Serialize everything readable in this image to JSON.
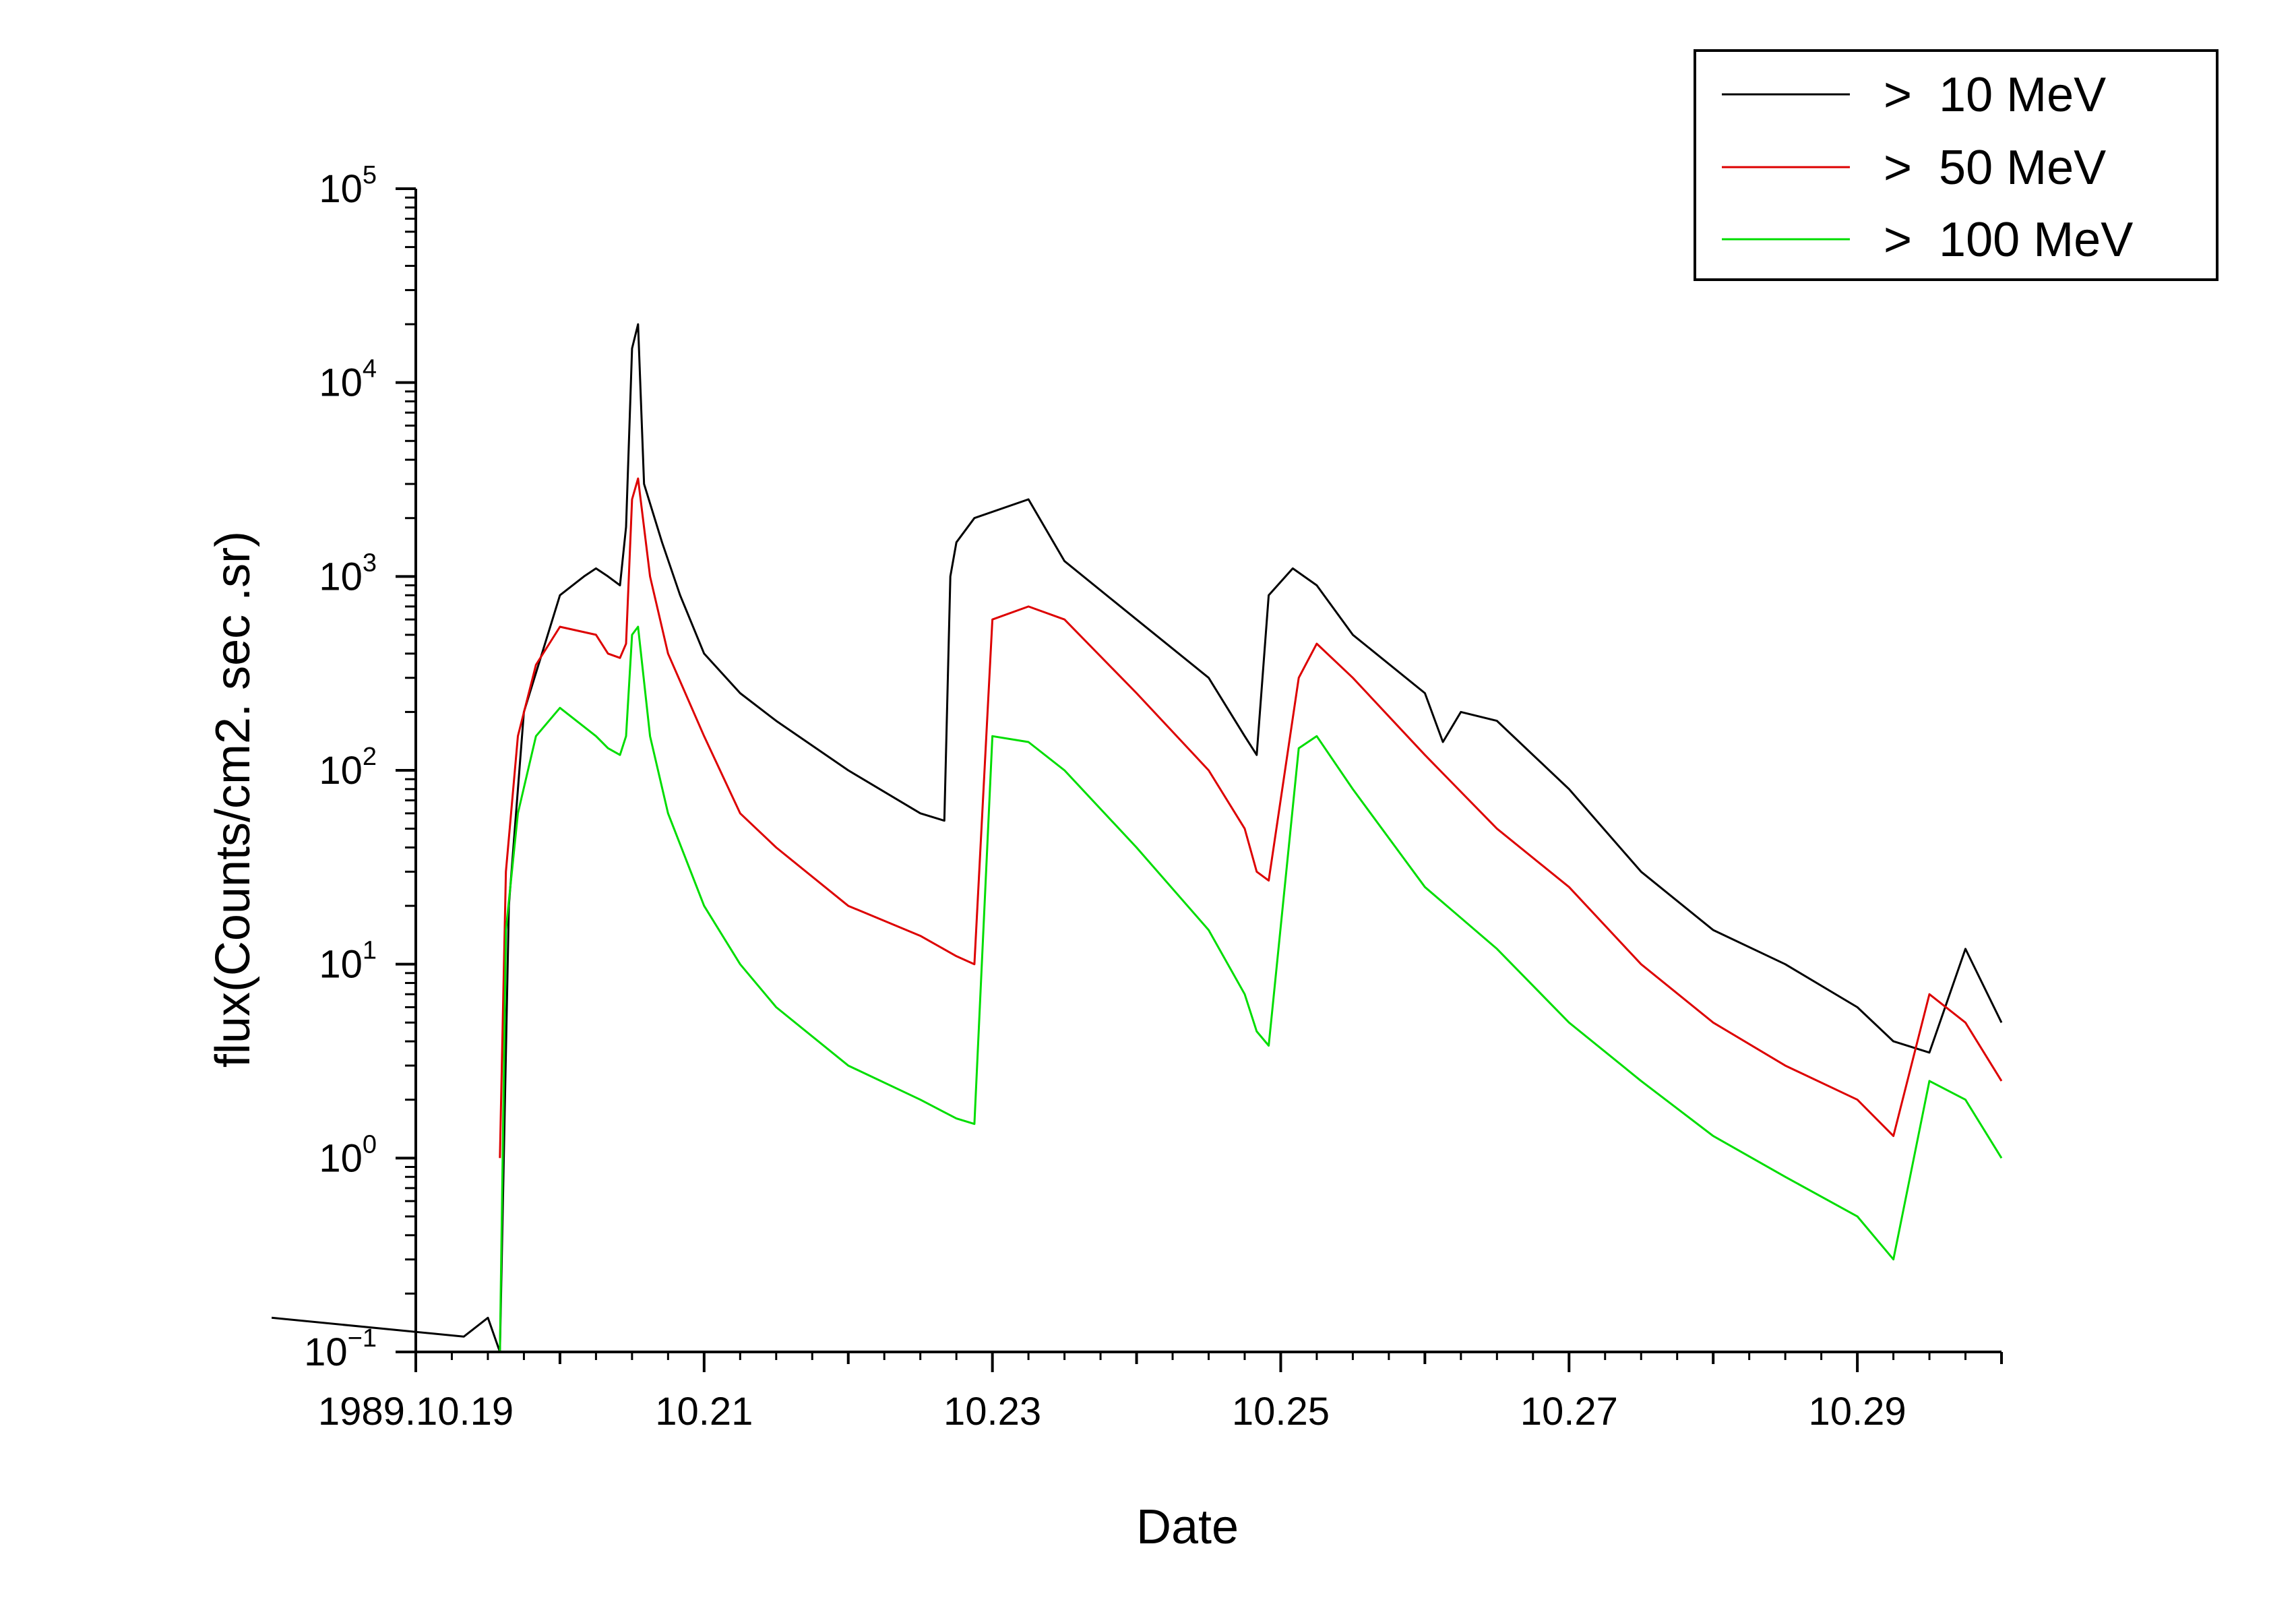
{
  "chart_data": {
    "type": "line",
    "xlabel": "Date",
    "ylabel": "flux(Counts/cm2. sec .sr)",
    "y_scale": "log",
    "ylim": [
      0.1,
      100000
    ],
    "xlim": [
      "1989-10-19",
      "1989-10-30"
    ],
    "x_tick_labels": [
      {
        "date": "1989-10-19",
        "label": "1989.10.19"
      },
      {
        "date": "1989-10-21",
        "label": "10.21"
      },
      {
        "date": "1989-10-23",
        "label": "10.23"
      },
      {
        "date": "1989-10-25",
        "label": "10.25"
      },
      {
        "date": "1989-10-27",
        "label": "10.27"
      },
      {
        "date": "1989-10-29",
        "label": "10.29"
      }
    ],
    "y_ticks": [
      {
        "value": 0.1,
        "base": "10",
        "exp": "−1"
      },
      {
        "value": 1,
        "base": "10",
        "exp": "0"
      },
      {
        "value": 10,
        "base": "10",
        "exp": "1"
      },
      {
        "value": 100,
        "base": "10",
        "exp": "2"
      },
      {
        "value": 1000,
        "base": "10",
        "exp": "3"
      },
      {
        "value": 10000,
        "base": "10",
        "exp": "4"
      },
      {
        "value": 100000,
        "base": "10",
        "exp": "5"
      }
    ],
    "grid": false,
    "legend_position": "top-right",
    "series": [
      {
        "name": ">  10 MeV",
        "color": "#000000",
        "x": [
          "1989-10-18T00:00",
          "1989-10-19T08:00",
          "1989-10-19T12:00",
          "1989-10-19T14:00",
          "1989-10-19T15:30",
          "1989-10-19T18:00",
          "1989-10-19T21:00",
          "1989-10-20T00:00",
          "1989-10-20T04:00",
          "1989-10-20T06:00",
          "1989-10-20T08:00",
          "1989-10-20T10:00",
          "1989-10-20T11:00",
          "1989-10-20T12:00",
          "1989-10-20T13:00",
          "1989-10-20T14:00",
          "1989-10-20T17:00",
          "1989-10-20T20:00",
          "1989-10-21T00:00",
          "1989-10-21T06:00",
          "1989-10-21T12:00",
          "1989-10-22T00:00",
          "1989-10-22T12:00",
          "1989-10-22T16:00",
          "1989-10-22T17:00",
          "1989-10-22T18:00",
          "1989-10-22T21:00",
          "1989-10-23T06:00",
          "1989-10-23T12:00",
          "1989-10-24T00:00",
          "1989-10-24T12:00",
          "1989-10-24T18:00",
          "1989-10-24T20:00",
          "1989-10-24T22:00",
          "1989-10-25T02:00",
          "1989-10-25T06:00",
          "1989-10-25T12:00",
          "1989-10-26T00:00",
          "1989-10-26T03:00",
          "1989-10-26T06:00",
          "1989-10-26T12:00",
          "1989-10-27T00:00",
          "1989-10-27T12:00",
          "1989-10-28T00:00",
          "1989-10-28T12:00",
          "1989-10-29T00:00",
          "1989-10-29T06:00",
          "1989-10-29T12:00",
          "1989-10-29T18:00",
          "1989-10-30T00:00"
        ],
        "values": [
          0.15,
          0.12,
          0.15,
          0.1,
          20,
          200,
          400,
          800,
          1000,
          1100,
          1000,
          900,
          1800,
          15000,
          20000,
          3000,
          1500,
          800,
          400,
          250,
          180,
          100,
          60,
          55,
          1000,
          1500,
          2000,
          2500,
          1200,
          600,
          300,
          150,
          120,
          800,
          1100,
          900,
          500,
          250,
          140,
          200,
          180,
          80,
          30,
          15,
          10,
          6,
          4,
          3.5,
          12,
          5
        ]
      },
      {
        "name": ">  50 MeV",
        "color": "#dd0000",
        "x": [
          "1989-10-19T14:00",
          "1989-10-19T15:00",
          "1989-10-19T17:00",
          "1989-10-19T20:00",
          "1989-10-20T00:00",
          "1989-10-20T06:00",
          "1989-10-20T08:00",
          "1989-10-20T10:00",
          "1989-10-20T11:00",
          "1989-10-20T12:00",
          "1989-10-20T13:00",
          "1989-10-20T15:00",
          "1989-10-20T18:00",
          "1989-10-21T00:00",
          "1989-10-21T06:00",
          "1989-10-21T12:00",
          "1989-10-22T00:00",
          "1989-10-22T12:00",
          "1989-10-22T18:00",
          "1989-10-22T21:00",
          "1989-10-23T00:00",
          "1989-10-23T06:00",
          "1989-10-23T12:00",
          "1989-10-24T00:00",
          "1989-10-24T12:00",
          "1989-10-24T18:00",
          "1989-10-24T20:00",
          "1989-10-24T22:00",
          "1989-10-25T03:00",
          "1989-10-25T06:00",
          "1989-10-25T12:00",
          "1989-10-26T00:00",
          "1989-10-26T12:00",
          "1989-10-27T00:00",
          "1989-10-27T12:00",
          "1989-10-28T00:00",
          "1989-10-28T12:00",
          "1989-10-29T00:00",
          "1989-10-29T06:00",
          "1989-10-29T12:00",
          "1989-10-29T18:00",
          "1989-10-30T00:00"
        ],
        "values": [
          1,
          30,
          150,
          350,
          550,
          500,
          400,
          380,
          450,
          2500,
          3200,
          1000,
          400,
          150,
          60,
          40,
          20,
          14,
          11,
          10,
          600,
          700,
          600,
          250,
          100,
          50,
          30,
          27,
          300,
          450,
          300,
          120,
          50,
          25,
          10,
          5,
          3,
          2,
          1.3,
          7,
          5,
          2.5
        ]
      },
      {
        "name": ">  100 MeV",
        "color": "#00dd00",
        "x": [
          "1989-10-19T14:00",
          "1989-10-19T15:00",
          "1989-10-19T17:00",
          "1989-10-19T20:00",
          "1989-10-20T00:00",
          "1989-10-20T06:00",
          "1989-10-20T08:00",
          "1989-10-20T10:00",
          "1989-10-20T11:00",
          "1989-10-20T12:00",
          "1989-10-20T13:00",
          "1989-10-20T15:00",
          "1989-10-20T18:00",
          "1989-10-21T00:00",
          "1989-10-21T06:00",
          "1989-10-21T12:00",
          "1989-10-22T00:00",
          "1989-10-22T12:00",
          "1989-10-22T18:00",
          "1989-10-22T21:00",
          "1989-10-23T00:00",
          "1989-10-23T06:00",
          "1989-10-23T12:00",
          "1989-10-24T00:00",
          "1989-10-24T12:00",
          "1989-10-24T18:00",
          "1989-10-24T20:00",
          "1989-10-24T22:00",
          "1989-10-25T03:00",
          "1989-10-25T06:00",
          "1989-10-25T12:00",
          "1989-10-26T00:00",
          "1989-10-26T12:00",
          "1989-10-27T00:00",
          "1989-10-27T12:00",
          "1989-10-28T00:00",
          "1989-10-28T12:00",
          "1989-10-29T00:00",
          "1989-10-29T06:00",
          "1989-10-29T12:00",
          "1989-10-29T18:00",
          "1989-10-30T00:00"
        ],
        "values": [
          0.1,
          15,
          60,
          150,
          210,
          150,
          130,
          120,
          150,
          500,
          550,
          150,
          60,
          20,
          10,
          6,
          3,
          2,
          1.6,
          1.5,
          150,
          140,
          100,
          40,
          15,
          7,
          4.5,
          3.8,
          130,
          150,
          80,
          25,
          12,
          5,
          2.5,
          1.3,
          0.8,
          0.5,
          0.3,
          2.5,
          2,
          1
        ]
      }
    ]
  }
}
